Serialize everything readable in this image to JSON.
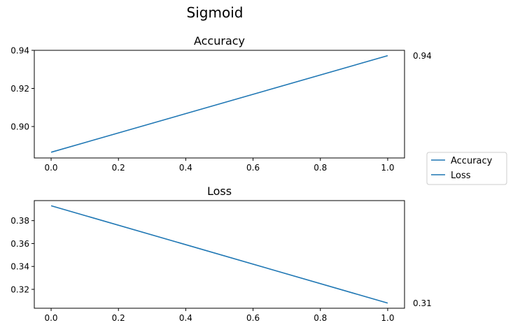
{
  "figure": {
    "title": "Sigmoid"
  },
  "legend": {
    "placement": "right",
    "entries": [
      {
        "label": "Accuracy",
        "color": "#1f77b4"
      },
      {
        "label": "Loss",
        "color": "#1f77b4"
      }
    ]
  },
  "chart_data": [
    {
      "type": "line",
      "title": "Accuracy",
      "xlabel": "",
      "ylabel": "",
      "xlim": [
        -0.05,
        1.05
      ],
      "ylim": [
        0.8835,
        0.94
      ],
      "xticks": [
        0.0,
        0.2,
        0.4,
        0.6,
        0.8,
        1.0
      ],
      "xtick_labels": [
        "0.0",
        "0.2",
        "0.4",
        "0.6",
        "0.8",
        "1.0"
      ],
      "yticks": [
        0.9,
        0.92,
        0.94
      ],
      "ytick_labels": [
        "0.90",
        "0.92",
        "0.94"
      ],
      "grid": false,
      "series": [
        {
          "x": [
            0,
            1
          ],
          "values": [
            0.8865,
            0.9372
          ],
          "color": "#1f77b4"
        }
      ],
      "end_label": "0.94"
    },
    {
      "type": "line",
      "title": "Loss",
      "xlabel": "",
      "ylabel": "",
      "xlim": [
        -0.05,
        1.05
      ],
      "ylim": [
        0.3035,
        0.3975
      ],
      "xticks": [
        0.0,
        0.2,
        0.4,
        0.6,
        0.8,
        1.0
      ],
      "xtick_labels": [
        "0.0",
        "0.2",
        "0.4",
        "0.6",
        "0.8",
        "1.0"
      ],
      "yticks": [
        0.32,
        0.34,
        0.36,
        0.38
      ],
      "ytick_labels": [
        "0.32",
        "0.34",
        "0.36",
        "0.38"
      ],
      "grid": false,
      "series": [
        {
          "x": [
            0,
            1
          ],
          "values": [
            0.393,
            0.308
          ],
          "color": "#1f77b4"
        }
      ],
      "end_label": "0.31"
    }
  ]
}
